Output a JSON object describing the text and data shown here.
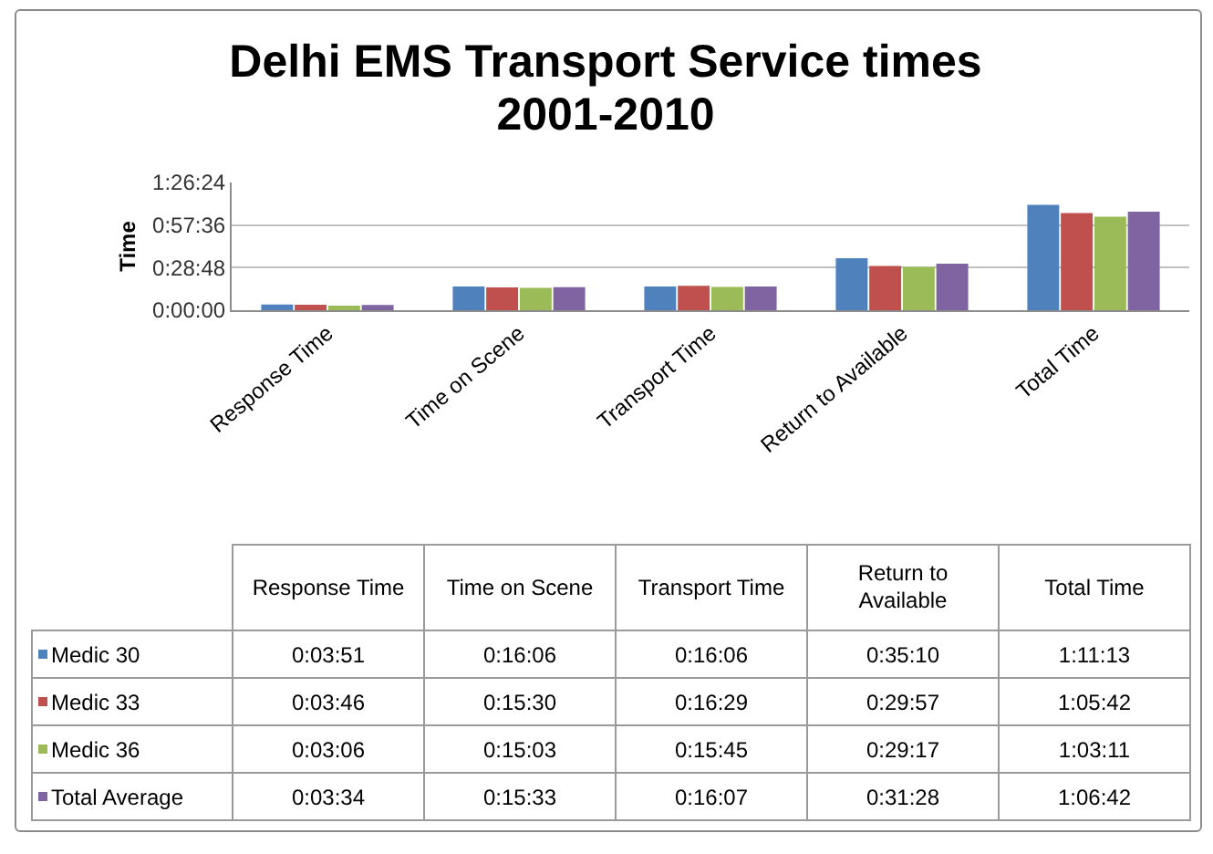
{
  "chart_data": {
    "type": "bar",
    "title": "Delhi EMS Transport Service times 2001-2010",
    "ylabel": "Time",
    "categories": [
      "Response Time",
      "Time on Scene",
      "Transport Time",
      "Return to Available",
      "Total Time"
    ],
    "series": [
      {
        "name": "Medic 30",
        "color": "#4f81bd",
        "values": [
          231,
          966,
          966,
          2110,
          4273
        ],
        "value_labels": [
          "0:03:51",
          "0:16:06",
          "0:16:06",
          "0:35:10",
          "1:11:13"
        ]
      },
      {
        "name": "Medic 33",
        "color": "#c0504d",
        "values": [
          226,
          930,
          989,
          1797,
          3942
        ],
        "value_labels": [
          "0:03:46",
          "0:15:30",
          "0:16:29",
          "0:29:57",
          "1:05:42"
        ]
      },
      {
        "name": "Medic 36",
        "color": "#9bbb59",
        "values": [
          186,
          903,
          945,
          1757,
          3791
        ],
        "value_labels": [
          "0:03:06",
          "0:15:03",
          "0:15:45",
          "0:29:17",
          "1:03:11"
        ]
      },
      {
        "name": "Total Average",
        "color": "#8064a2",
        "values": [
          214,
          933,
          967,
          1888,
          4002
        ],
        "value_labels": [
          "0:03:34",
          "0:15:33",
          "0:16:07",
          "0:31:28",
          "1:06:42"
        ]
      }
    ],
    "ylim": [
      0,
      5184
    ],
    "yticks": [
      {
        "value": 0,
        "label": "0:00:00"
      },
      {
        "value": 1728,
        "label": "0:28:48"
      },
      {
        "value": 3456,
        "label": "0:57:36"
      },
      {
        "value": 5184,
        "label": "1:26:24"
      }
    ],
    "grid": "y",
    "legend": "bottom"
  }
}
